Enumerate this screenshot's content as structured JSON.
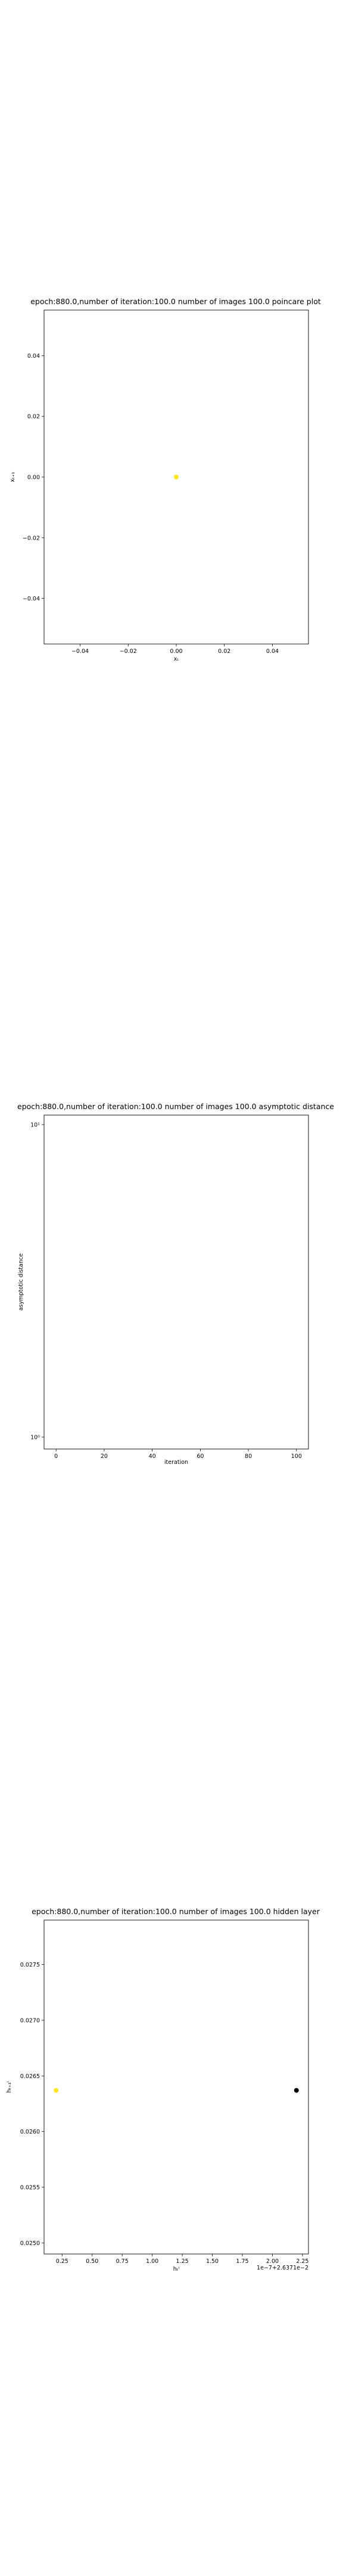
{
  "chart_data": [
    {
      "type": "scatter",
      "title": "epoch:880.0,number of iteration:100.0 number of images 100.0 poincare plot",
      "xlabel": "xₜ",
      "ylabel": "xₜ₊₁",
      "xlim": [
        -0.055,
        0.055
      ],
      "ylim": [
        -0.055,
        0.055
      ],
      "xticks": [
        -0.04,
        -0.02,
        0.0,
        0.02,
        0.04
      ],
      "yticks": [
        -0.04,
        -0.02,
        0.0,
        0.02,
        0.04
      ],
      "xtick_labels": [
        "−0.04",
        "−0.02",
        "0.00",
        "0.02",
        "0.04"
      ],
      "ytick_labels": [
        "−0.04",
        "−0.02",
        "0.00",
        "0.02",
        "0.04"
      ],
      "points": [
        {
          "x": 0.0,
          "y": 0.0,
          "color": "#fde725"
        }
      ]
    },
    {
      "type": "line",
      "title": "epoch:880.0,number of iteration:100.0  number of images 100.0 asymptotic distance",
      "xlabel": "iteration",
      "ylabel": "asymptotic distance",
      "yscale": "log",
      "xlim": [
        -5,
        105
      ],
      "xticks": [
        0,
        20,
        40,
        60,
        80,
        100
      ],
      "xtick_labels": [
        "0",
        "20",
        "40",
        "60",
        "80",
        "100"
      ],
      "yticks": [
        1,
        10
      ],
      "ytick_labels": [
        "10⁰",
        "10¹"
      ],
      "series": []
    },
    {
      "type": "scatter",
      "title": "epoch:880.0,number of iteration:100.0  number of images 100.0 hidden layer",
      "xlabel": "hₜⁱ",
      "ylabel": "hₜ₊₁ⁱ",
      "offset_text": "1e−7+2.6371e−2",
      "xlim": [
        0.1,
        2.3
      ],
      "ylim": [
        0.0249,
        0.0279
      ],
      "xticks": [
        0.25,
        0.5,
        0.75,
        1.0,
        1.25,
        1.5,
        1.75,
        2.0,
        2.25
      ],
      "xtick_labels": [
        "0.25",
        "0.50",
        "0.75",
        "1.00",
        "1.25",
        "1.50",
        "1.75",
        "2.00",
        "2.25"
      ],
      "yticks": [
        0.025,
        0.0255,
        0.026,
        0.0265,
        0.027,
        0.0275
      ],
      "ytick_labels": [
        "0.0250",
        "0.0255",
        "0.0260",
        "0.0265",
        "0.0270",
        "0.0275"
      ],
      "points": [
        {
          "x": 0.2,
          "y": 0.02637,
          "color": "#fde725"
        },
        {
          "x": 2.2,
          "y": 0.02637,
          "color": "#000000"
        }
      ]
    }
  ]
}
